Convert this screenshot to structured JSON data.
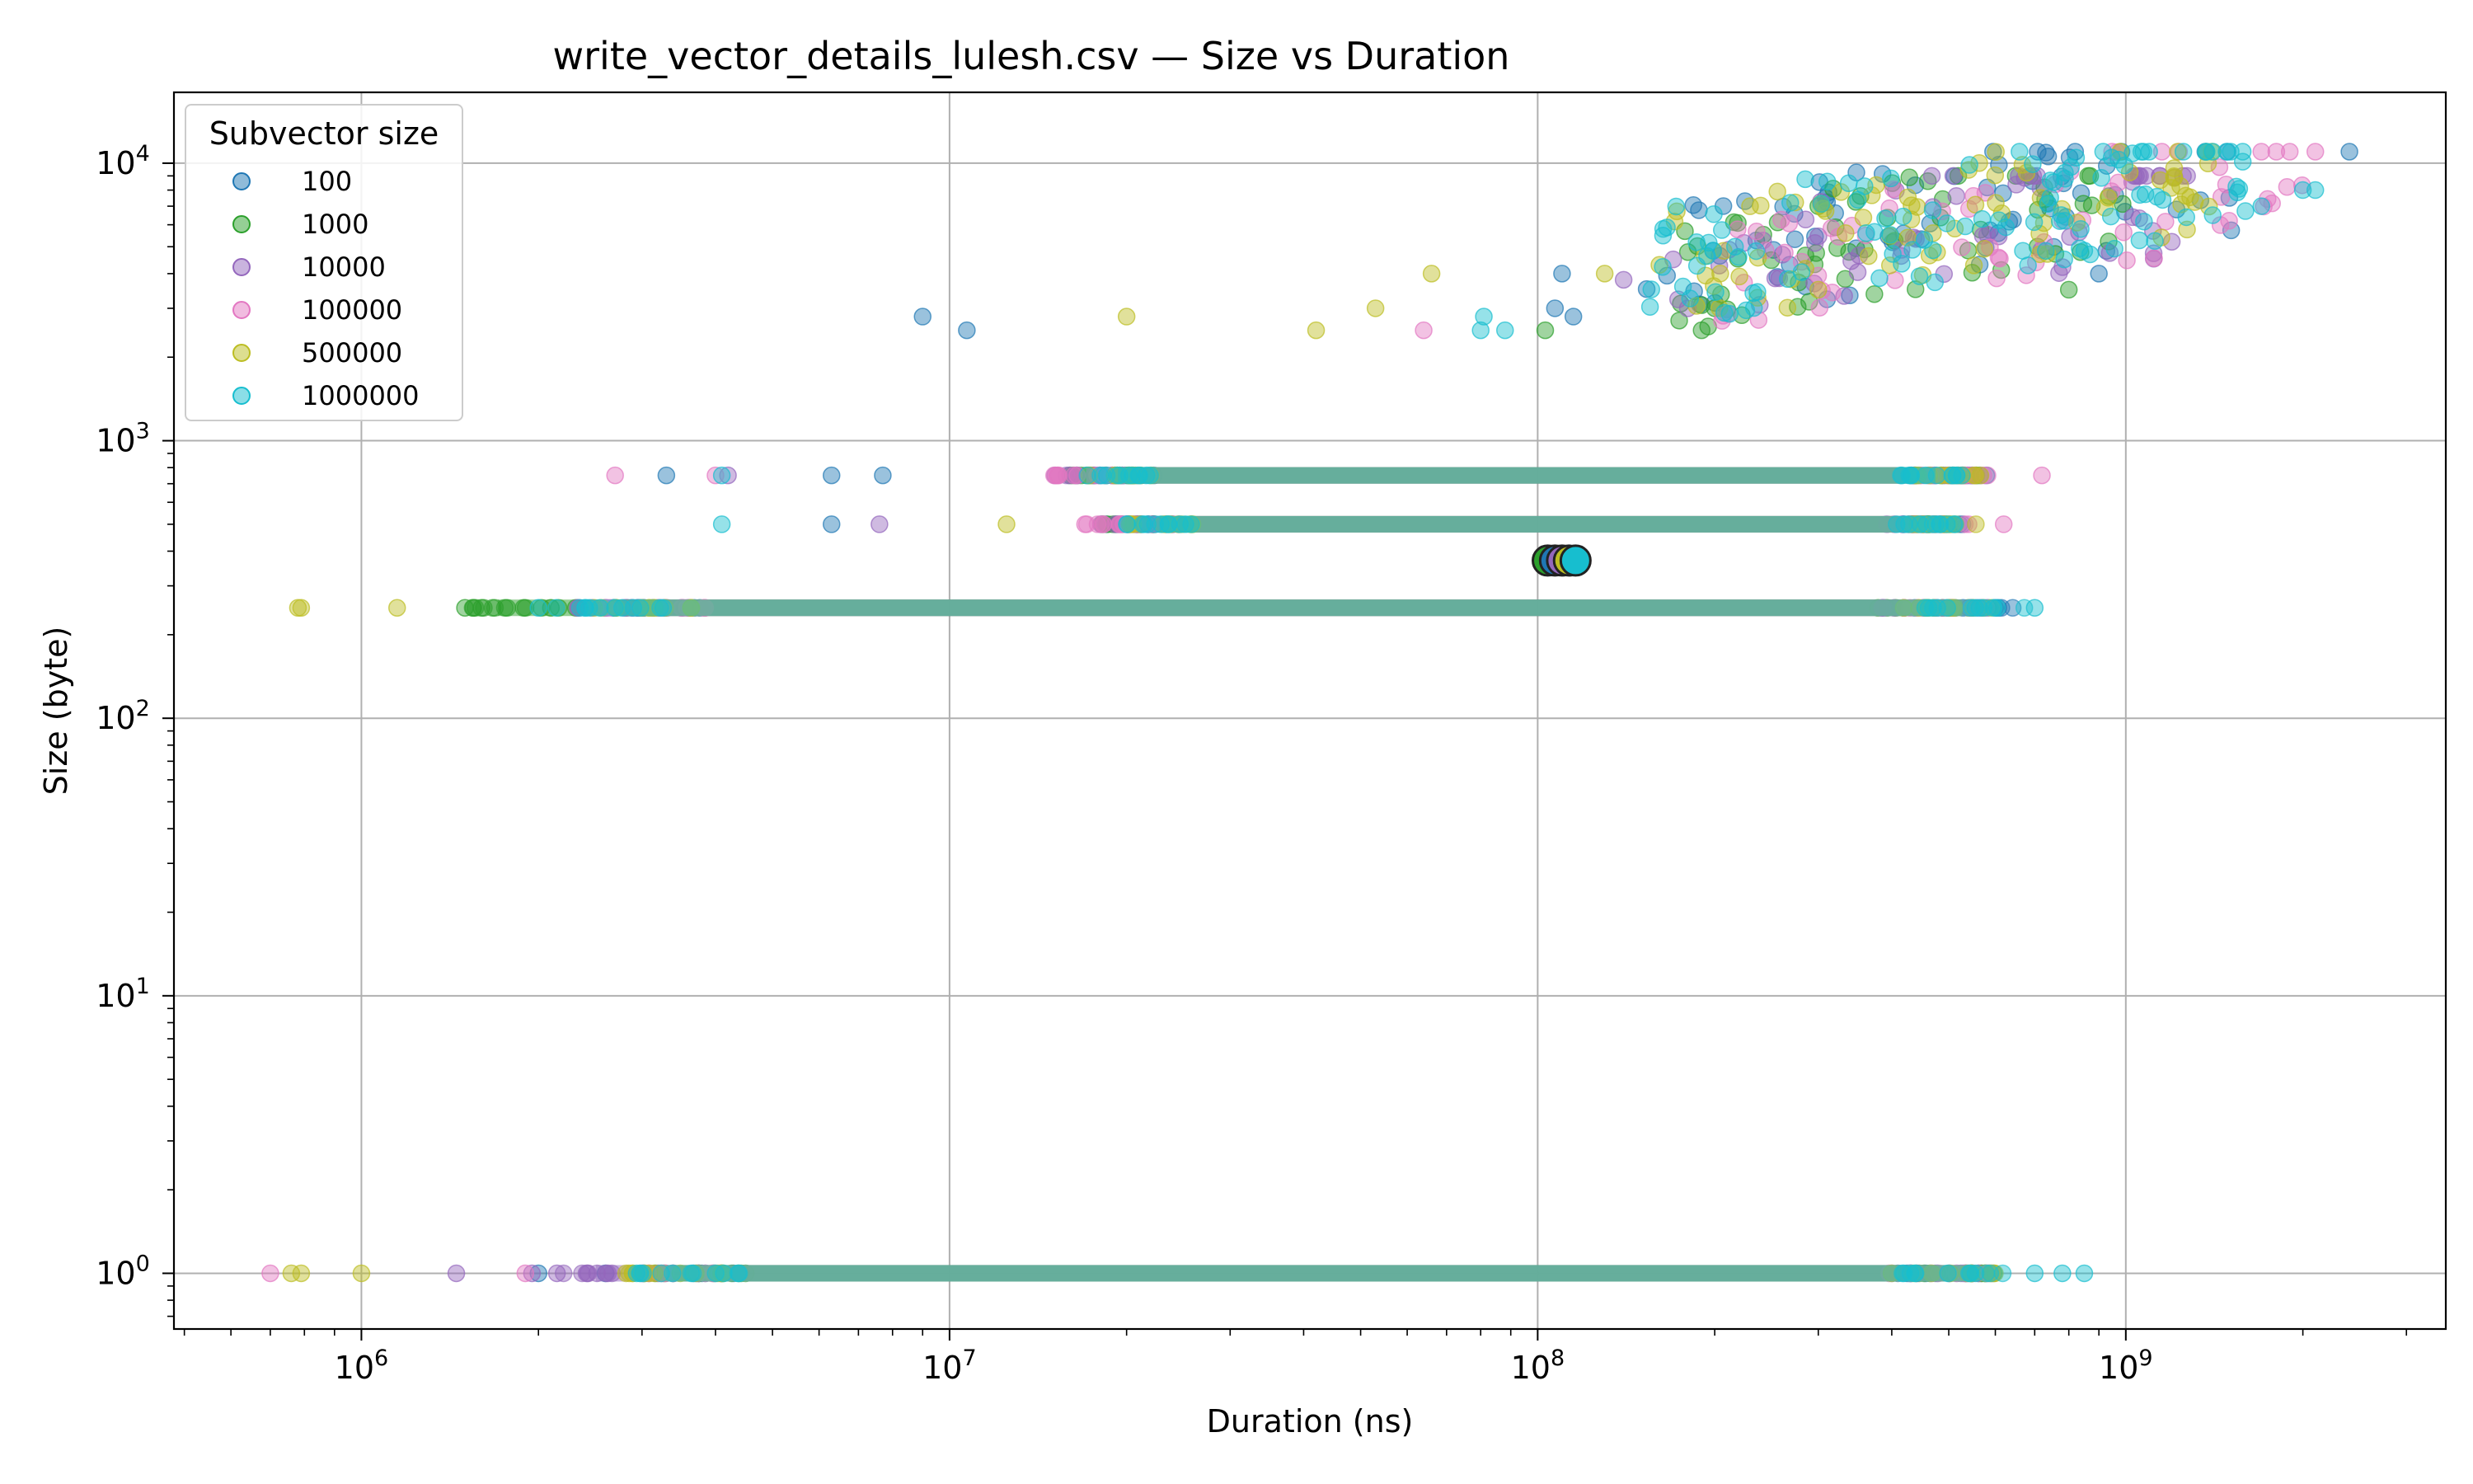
{
  "chart_data": {
    "type": "scatter",
    "title": "write_vector_details_lulesh.csv — Size vs Duration",
    "xlabel": "Duration (ns)",
    "ylabel": "Size (byte)",
    "xscale": "log",
    "yscale": "log",
    "xlim": [
      480000,
      3500000000
    ],
    "ylim": [
      0.63,
      18000
    ],
    "grid": true,
    "x_ticks": [
      {
        "value": 1000000,
        "base": "10",
        "exp": "6"
      },
      {
        "value": 10000000,
        "base": "10",
        "exp": "7"
      },
      {
        "value": 100000000,
        "base": "10",
        "exp": "8"
      },
      {
        "value": 1000000000,
        "base": "10",
        "exp": "9"
      }
    ],
    "y_ticks": [
      {
        "value": 1,
        "base": "10",
        "exp": "0"
      },
      {
        "value": 10,
        "base": "10",
        "exp": "1"
      },
      {
        "value": 100,
        "base": "10",
        "exp": "2"
      },
      {
        "value": 1000,
        "base": "10",
        "exp": "3"
      },
      {
        "value": 10000,
        "base": "10",
        "exp": "4"
      }
    ],
    "legend": {
      "title": "Subvector size",
      "position": "top-left"
    },
    "series": [
      {
        "name": "100",
        "color": "#1f77b4",
        "bands": [
          {
            "y": 1,
            "x_from": 2800000,
            "x_to": 600000000
          },
          {
            "y": 250,
            "x_from": 2500000,
            "x_to": 650000000
          },
          {
            "y": 500,
            "x_from": 18000000,
            "x_to": 550000000
          },
          {
            "y": 750,
            "x_from": 17000000,
            "x_to": 580000000
          }
        ],
        "points": [
          [
            2600000,
            1
          ],
          [
            2000000,
            1
          ],
          [
            2700000,
            250
          ],
          [
            2600000,
            250
          ],
          [
            3300000,
            750
          ],
          [
            6300000,
            750
          ],
          [
            7700000,
            750
          ],
          [
            6300000,
            500
          ],
          [
            9000000,
            2800
          ],
          [
            10700000,
            2500
          ],
          [
            110000000,
            4000
          ],
          [
            115000000,
            2800
          ],
          [
            107000000,
            3000
          ],
          [
            2400000000,
            11000
          ],
          [
            1500000000,
            7500
          ],
          [
            900000000,
            4000
          ]
        ],
        "cluster": {
          "x_from": 150000000,
          "x_to": 1600000000,
          "y_from": 2500,
          "y_to": 11000,
          "count": 70
        }
      },
      {
        "name": "1000",
        "color": "#2ca02c",
        "bands": [
          {
            "y": 1,
            "x_from": 3000000,
            "x_to": 620000000
          },
          {
            "y": 250,
            "x_from": 1500000,
            "x_to": 600000000
          },
          {
            "y": 500,
            "x_from": 18000000,
            "x_to": 500000000
          },
          {
            "y": 750,
            "x_from": 16000000,
            "x_to": 560000000
          }
        ],
        "points": [
          [
            1500000,
            250
          ],
          [
            1550000,
            250
          ],
          [
            1600000,
            250
          ],
          [
            2100000,
            250
          ],
          [
            103000000,
            2500
          ],
          [
            190000000,
            2500
          ],
          [
            300000000,
            7000
          ],
          [
            800000000,
            3500
          ]
        ],
        "cluster": {
          "x_from": 170000000,
          "x_to": 1000000000,
          "y_from": 2500,
          "y_to": 9000,
          "count": 60
        }
      },
      {
        "name": "10000",
        "color": "#9467bd",
        "bands": [
          {
            "y": 1,
            "x_from": 2200000,
            "x_to": 600000000
          },
          {
            "y": 250,
            "x_from": 2300000,
            "x_to": 600000000
          },
          {
            "y": 500,
            "x_from": 19000000,
            "x_to": 500000000
          },
          {
            "y": 750,
            "x_from": 15000000,
            "x_to": 560000000
          }
        ],
        "points": [
          [
            1450000,
            1
          ],
          [
            1950000,
            1
          ],
          [
            2150000,
            1
          ],
          [
            4200000,
            750
          ],
          [
            7600000,
            500
          ],
          [
            140000000,
            3800
          ],
          [
            170000000,
            4500
          ],
          [
            180000000,
            3000
          ]
        ],
        "cluster": {
          "x_from": 170000000,
          "x_to": 1300000000,
          "y_from": 2500,
          "y_to": 9000,
          "count": 60
        }
      },
      {
        "name": "100000",
        "color": "#e377c2",
        "bands": [
          {
            "y": 1,
            "x_from": 2900000,
            "x_to": 600000000
          },
          {
            "y": 250,
            "x_from": 2600000,
            "x_to": 620000000
          },
          {
            "y": 500,
            "x_from": 17000000,
            "x_to": 550000000
          },
          {
            "y": 750,
            "x_from": 15000000,
            "x_to": 600000000
          }
        ],
        "points": [
          [
            700000,
            1
          ],
          [
            1900000,
            1
          ],
          [
            2700000,
            750
          ],
          [
            4000000,
            750
          ],
          [
            620000000,
            500
          ],
          [
            720000000,
            750
          ],
          [
            17000000,
            500
          ],
          [
            64000000,
            2500
          ],
          [
            1700000000,
            11000
          ],
          [
            1900000000,
            11000
          ],
          [
            2100000000,
            11000
          ]
        ],
        "cluster": {
          "x_from": 200000000,
          "x_to": 2100000000,
          "y_from": 2500,
          "y_to": 11000,
          "count": 60
        }
      },
      {
        "name": "500000",
        "color": "#bcbd22",
        "bands": [
          {
            "y": 1,
            "x_from": 2800000,
            "x_to": 600000000
          },
          {
            "y": 250,
            "x_from": 2400000,
            "x_to": 600000000
          },
          {
            "y": 500,
            "x_from": 20000000,
            "x_to": 560000000
          },
          {
            "y": 750,
            "x_from": 17000000,
            "x_to": 580000000
          }
        ],
        "points": [
          [
            760000,
            1
          ],
          [
            790000,
            1
          ],
          [
            1000000,
            1
          ],
          [
            780000,
            250
          ],
          [
            790000,
            250
          ],
          [
            1150000,
            250
          ],
          [
            12500000,
            500
          ],
          [
            20000000,
            2800
          ],
          [
            42000000,
            2500
          ],
          [
            53000000,
            3000
          ],
          [
            66000000,
            4000
          ],
          [
            130000000,
            4000
          ],
          [
            300000000,
            3500
          ]
        ],
        "cluster": {
          "x_from": 160000000,
          "x_to": 1500000000,
          "y_from": 2500,
          "y_to": 11000,
          "count": 80
        }
      },
      {
        "name": "1000000",
        "color": "#17becf",
        "bands": [
          {
            "y": 1,
            "x_from": 2900000,
            "x_to": 640000000
          },
          {
            "y": 250,
            "x_from": 2100000,
            "x_to": 700000000
          },
          {
            "y": 500,
            "x_from": 20000000,
            "x_to": 520000000
          },
          {
            "y": 750,
            "x_from": 17000000,
            "x_to": 540000000
          }
        ],
        "points": [
          [
            2000000,
            250
          ],
          [
            4100000,
            750
          ],
          [
            4100000,
            500
          ],
          [
            700000000,
            250
          ],
          [
            700000000,
            1
          ],
          [
            780000000,
            1
          ],
          [
            850000000,
            1
          ],
          [
            80000000,
            2500
          ],
          [
            81000000,
            2800
          ],
          [
            88000000,
            2500
          ],
          [
            2000000000,
            8000
          ],
          [
            2100000000,
            8000
          ],
          [
            1700000000,
            7000
          ]
        ],
        "cluster": {
          "x_from": 150000000,
          "x_to": 1600000000,
          "y_from": 2500,
          "y_to": 11000,
          "count": 110
        }
      }
    ],
    "highlights": [
      {
        "x": 104000000,
        "y": 370,
        "color": "#2ca02c"
      },
      {
        "x": 107000000,
        "y": 370,
        "color": "#1f77b4"
      },
      {
        "x": 110000000,
        "y": 370,
        "color": "#9467bd"
      },
      {
        "x": 113000000,
        "y": 370,
        "color": "#bcbd22"
      },
      {
        "x": 116000000,
        "y": 370,
        "color": "#17becf"
      }
    ]
  }
}
